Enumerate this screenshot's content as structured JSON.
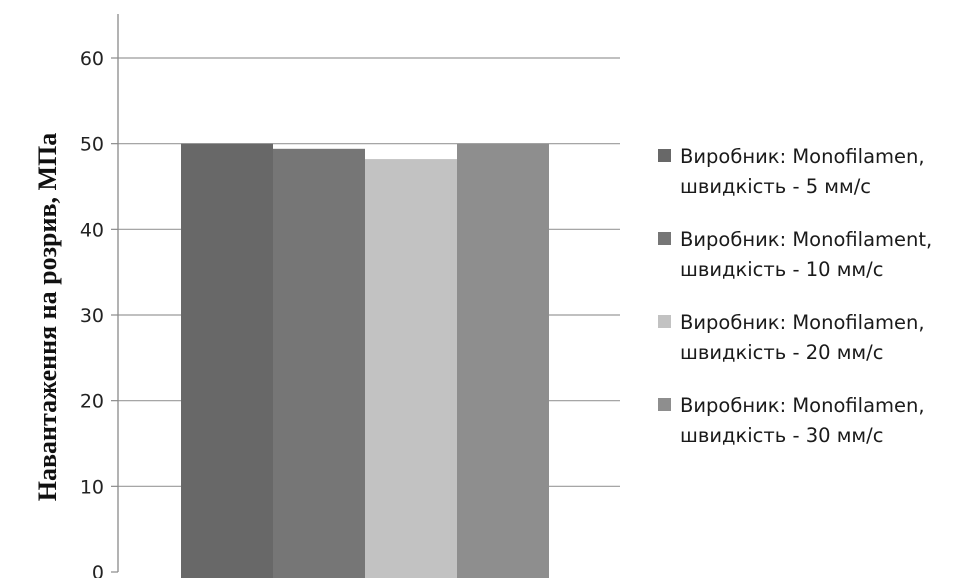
{
  "chart_data": {
    "type": "bar",
    "title": "",
    "xlabel": "",
    "ylabel": "Навантаження на розрив, МПа",
    "ylim": [
      0,
      60
    ],
    "yticks": [
      0,
      10,
      20,
      30,
      40,
      50,
      60
    ],
    "grid": true,
    "legend_position": "right",
    "series": [
      {
        "name": "Виробник: Monofilamen,\nшвидкість - 5 мм/с",
        "value": 50.0,
        "color": "#686868"
      },
      {
        "name": "Виробник: Monofilament,\nшвидкість - 10 мм/с",
        "value": 49.4,
        "color": "#767676"
      },
      {
        "name": "Виробник: Monofilamen,\nшвидкість - 20 мм/с",
        "value": 48.2,
        "color": "#c2c2c2"
      },
      {
        "name": "Виробник: Monofilamen,\nшвидкість - 30 мм/с",
        "value": 50.0,
        "color": "#8e8e8e"
      }
    ]
  }
}
